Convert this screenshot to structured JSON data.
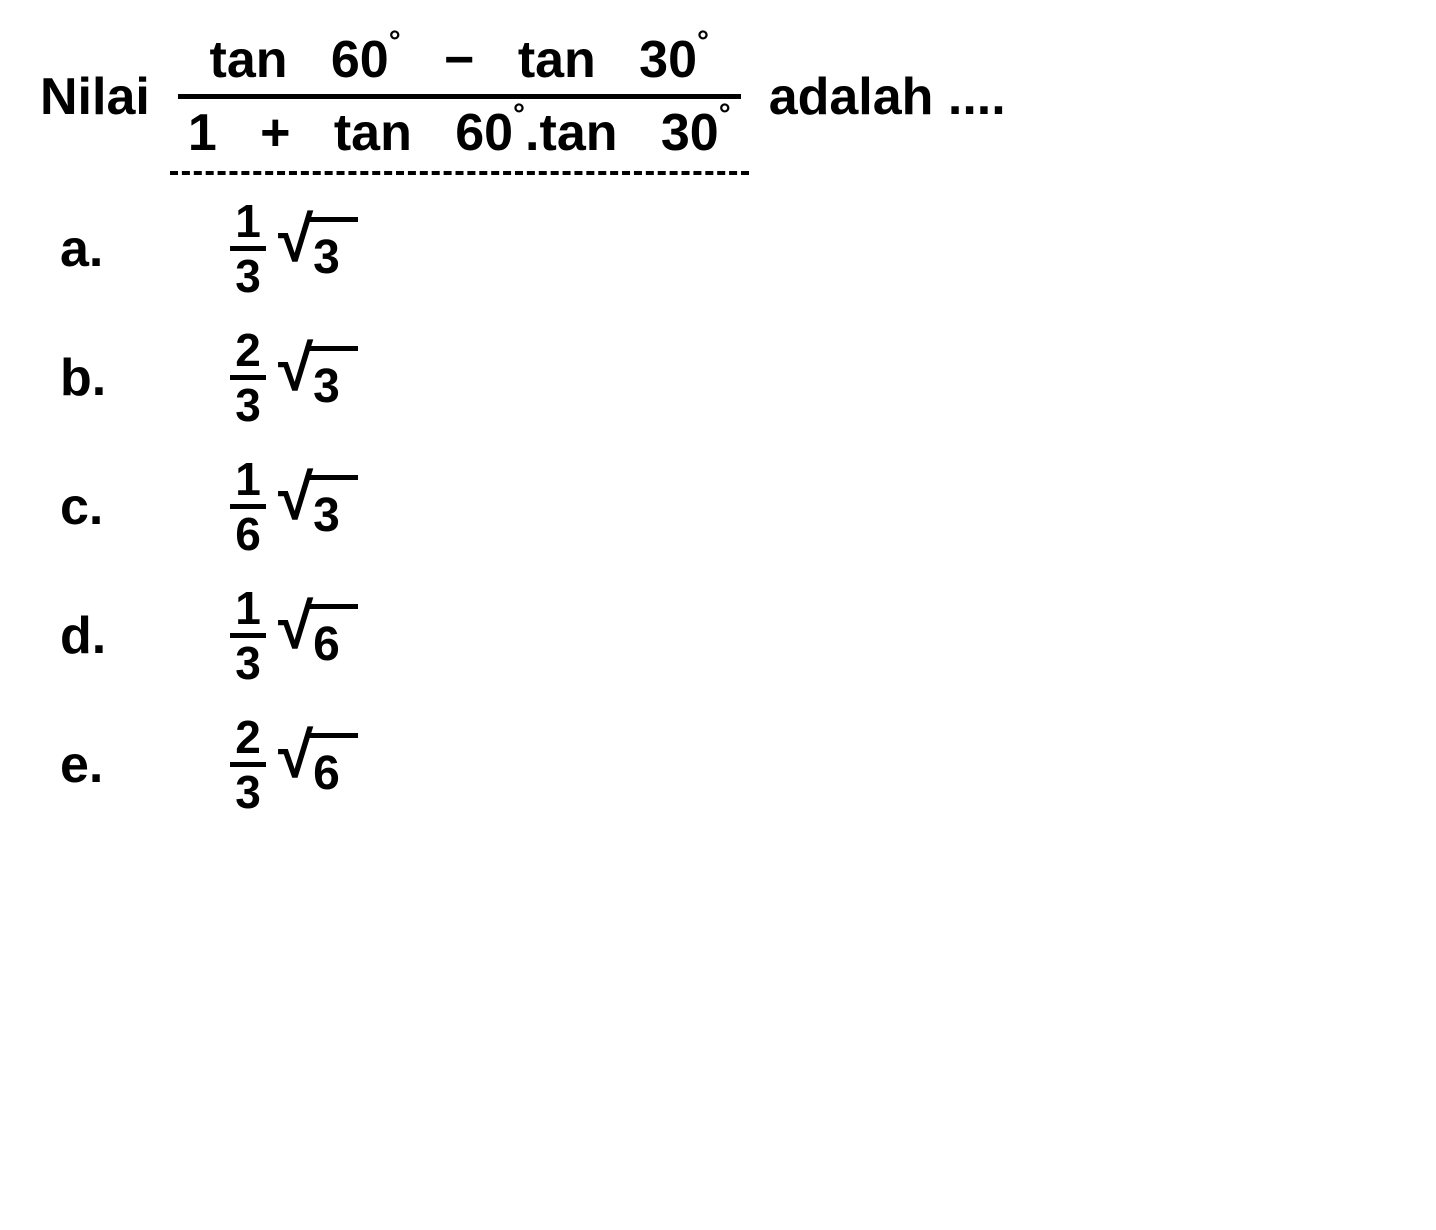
{
  "question": {
    "prefix": "Nilai",
    "numerator": {
      "left_fn": "tan",
      "left_angle": "60",
      "left_deg": "°",
      "op": "−",
      "right_fn": "tan",
      "right_angle": "30",
      "right_deg": "°"
    },
    "denominator": {
      "one": "1",
      "plus": "+",
      "left_fn": "tan",
      "left_angle": "60",
      "left_deg": "°",
      "dot": ".",
      "right_fn": "tan",
      "right_angle": "30",
      "right_deg": "°"
    },
    "suffix": "adalah ....",
    "colors": {
      "text": "#000000",
      "background": "#ffffff"
    },
    "fontsize_main": 52,
    "fontsize_options": 52
  },
  "options": [
    {
      "letter": "a.",
      "frac_num": "1",
      "frac_den": "3",
      "radicand": "3"
    },
    {
      "letter": "b.",
      "frac_num": "2",
      "frac_den": "3",
      "radicand": "3"
    },
    {
      "letter": "c.",
      "frac_num": "1",
      "frac_den": "6",
      "radicand": "3"
    },
    {
      "letter": "d.",
      "frac_num": "1",
      "frac_den": "3",
      "radicand": "6"
    },
    {
      "letter": "e.",
      "frac_num": "2",
      "frac_den": "3",
      "radicand": "6"
    }
  ]
}
